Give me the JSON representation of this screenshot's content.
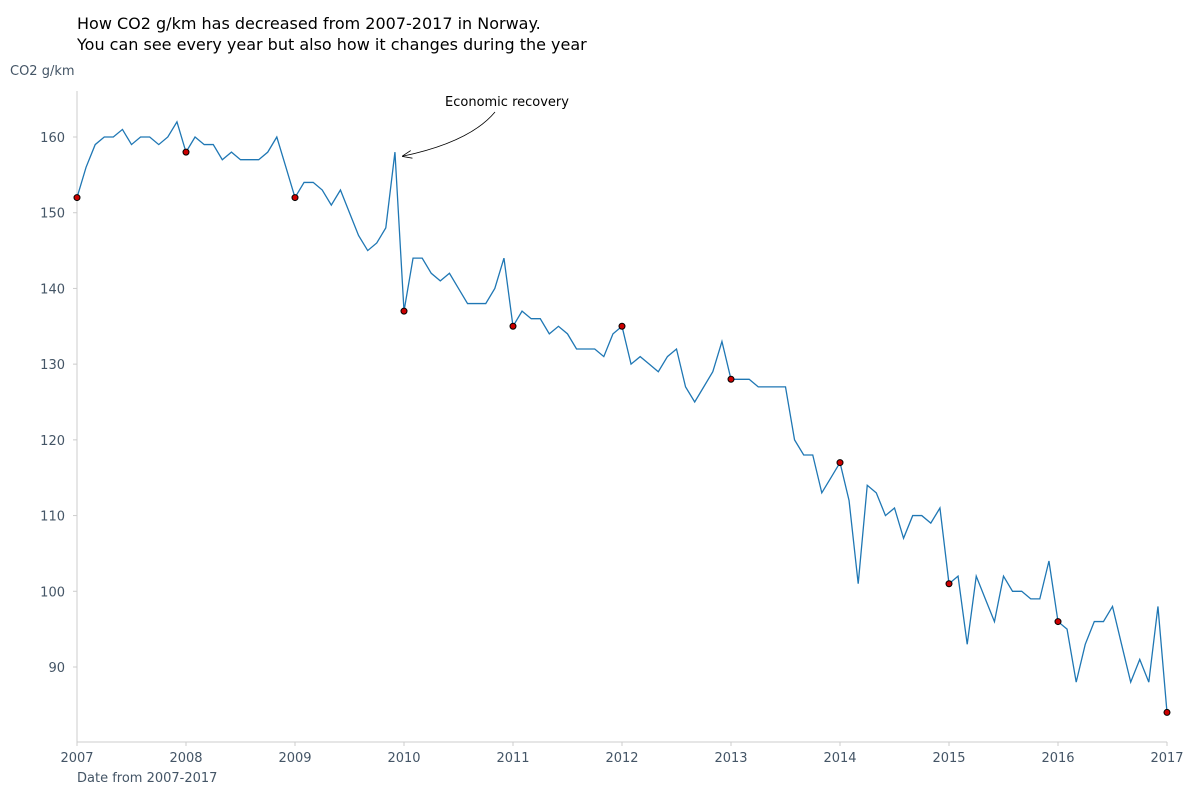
{
  "chart_data": {
    "type": "line",
    "title_lines": [
      "How CO2 g/km has decreased from 2007-2017 in Norway.",
      "You can see every year but also how it changes during the year"
    ],
    "xlabel": "Date from 2007-2017",
    "ylabel": "CO2 g/km",
    "xlim": [
      2007,
      2017
    ],
    "ylim": [
      80,
      166
    ],
    "x_ticks": [
      2007,
      2008,
      2009,
      2010,
      2011,
      2012,
      2013,
      2014,
      2015,
      2016,
      2017
    ],
    "y_ticks": [
      90,
      100,
      110,
      120,
      130,
      140,
      150,
      160
    ],
    "grid": false,
    "line_color": "#1f77b4",
    "marker_color": "#cc0000",
    "series": [
      {
        "x": [
          2007.0,
          2007.083,
          2007.167,
          2007.25,
          2007.333,
          2007.417,
          2007.5,
          2007.583,
          2007.667,
          2007.75,
          2007.833,
          2007.917,
          2008.0,
          2008.083,
          2008.167,
          2008.25,
          2008.333,
          2008.417,
          2008.5,
          2008.583,
          2008.667,
          2008.75,
          2008.833,
          2008.917,
          2009.0,
          2009.083,
          2009.167,
          2009.25,
          2009.333,
          2009.417,
          2009.5,
          2009.583,
          2009.667,
          2009.75,
          2009.833,
          2009.917,
          2010.0,
          2010.083,
          2010.167,
          2010.25,
          2010.333,
          2010.417,
          2010.5,
          2010.583,
          2010.667,
          2010.75,
          2010.833,
          2010.917,
          2011.0,
          2011.083,
          2011.167,
          2011.25,
          2011.333,
          2011.417,
          2011.5,
          2011.583,
          2011.667,
          2011.75,
          2011.833,
          2011.917,
          2012.0,
          2012.083,
          2012.167,
          2012.25,
          2012.333,
          2012.417,
          2012.5,
          2012.583,
          2012.667,
          2012.75,
          2012.833,
          2012.917,
          2013.0,
          2013.083,
          2013.167,
          2013.25,
          2013.333,
          2013.417,
          2013.5,
          2013.583,
          2013.667,
          2013.75,
          2013.833,
          2013.917,
          2014.0,
          2014.083,
          2014.167,
          2014.25,
          2014.333,
          2014.417,
          2014.5,
          2014.583,
          2014.667,
          2014.75,
          2014.833,
          2014.917,
          2015.0,
          2015.083,
          2015.167,
          2015.25,
          2015.333,
          2015.417,
          2015.5,
          2015.583,
          2015.667,
          2015.75,
          2015.833,
          2015.917,
          2016.0,
          2016.083,
          2016.167,
          2016.25,
          2016.333,
          2016.417,
          2016.5,
          2016.583,
          2016.667,
          2016.75,
          2016.833,
          2016.917,
          2017.0
        ],
        "y": [
          152,
          156,
          159,
          160,
          160,
          161,
          159,
          160,
          160,
          159,
          160,
          162,
          158,
          160,
          159,
          159,
          157,
          158,
          157,
          157,
          157,
          158,
          160,
          156,
          152,
          154,
          154,
          153,
          151,
          153,
          150,
          147,
          145,
          146,
          148,
          158,
          137,
          144,
          144,
          142,
          141,
          142,
          140,
          138,
          138,
          138,
          140,
          144,
          135,
          137,
          136,
          136,
          134,
          135,
          134,
          132,
          132,
          132,
          131,
          134,
          135,
          130,
          131,
          130,
          129,
          131,
          132,
          127,
          125,
          127,
          129,
          133,
          128,
          128,
          128,
          127,
          127,
          127,
          127,
          120,
          118,
          118,
          113,
          115,
          117,
          112,
          101,
          114,
          113,
          110,
          111,
          107,
          110,
          110,
          109,
          111,
          101,
          102,
          93,
          102,
          99,
          96,
          102,
          100,
          100,
          99,
          99,
          104,
          96,
          95,
          88,
          93,
          96,
          96,
          98,
          93,
          88,
          91,
          88,
          98,
          84
        ]
      }
    ],
    "markers": {
      "x": [
        2007,
        2008,
        2009,
        2010,
        2011,
        2012,
        2013,
        2014,
        2015,
        2016,
        2017
      ],
      "y": [
        152,
        158,
        152,
        137,
        135,
        135,
        128,
        117,
        101,
        96,
        84
      ]
    },
    "annotations": [
      {
        "text": "Economic recovery",
        "x": 2009.917,
        "y": 158
      }
    ]
  }
}
